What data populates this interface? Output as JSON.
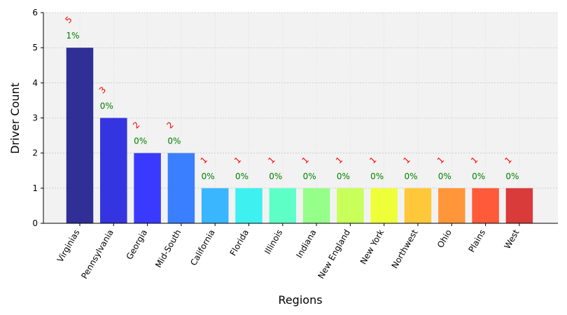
{
  "chart_data": {
    "type": "bar",
    "title": "",
    "xlabel": "Regions",
    "ylabel": "Driver Count",
    "ylim": [
      0,
      6
    ],
    "yticks": [
      "0",
      "1",
      "2",
      "3",
      "4",
      "5",
      "6"
    ],
    "grid": true,
    "categories": [
      "Virginias",
      "Pennsylvania",
      "Georgia",
      "Mid-South",
      "California",
      "Florida",
      "Illinois",
      "Indiana",
      "New England",
      "New York",
      "Northwest",
      "Ohio",
      "Plains",
      "West"
    ],
    "values": [
      5,
      3,
      2,
      2,
      1,
      1,
      1,
      1,
      1,
      1,
      1,
      1,
      1,
      1
    ],
    "value_labels": [
      "5",
      "3",
      "2",
      "2",
      "1",
      "1",
      "1",
      "1",
      "1",
      "1",
      "1",
      "1",
      "1",
      "1"
    ],
    "percent_labels": [
      "1%",
      "0%",
      "0%",
      "0%",
      "0%",
      "0%",
      "0%",
      "0%",
      "0%",
      "0%",
      "0%",
      "0%",
      "0%",
      "0%"
    ],
    "colors": [
      "#2f2f96",
      "#3434e0",
      "#3a3aff",
      "#3a7fff",
      "#3ab5ff",
      "#3ef0f0",
      "#5fffc8",
      "#96ff8a",
      "#c8ff5a",
      "#eeff3a",
      "#ffc83a",
      "#ff963a",
      "#ff5a3a",
      "#d93a3a"
    ]
  }
}
